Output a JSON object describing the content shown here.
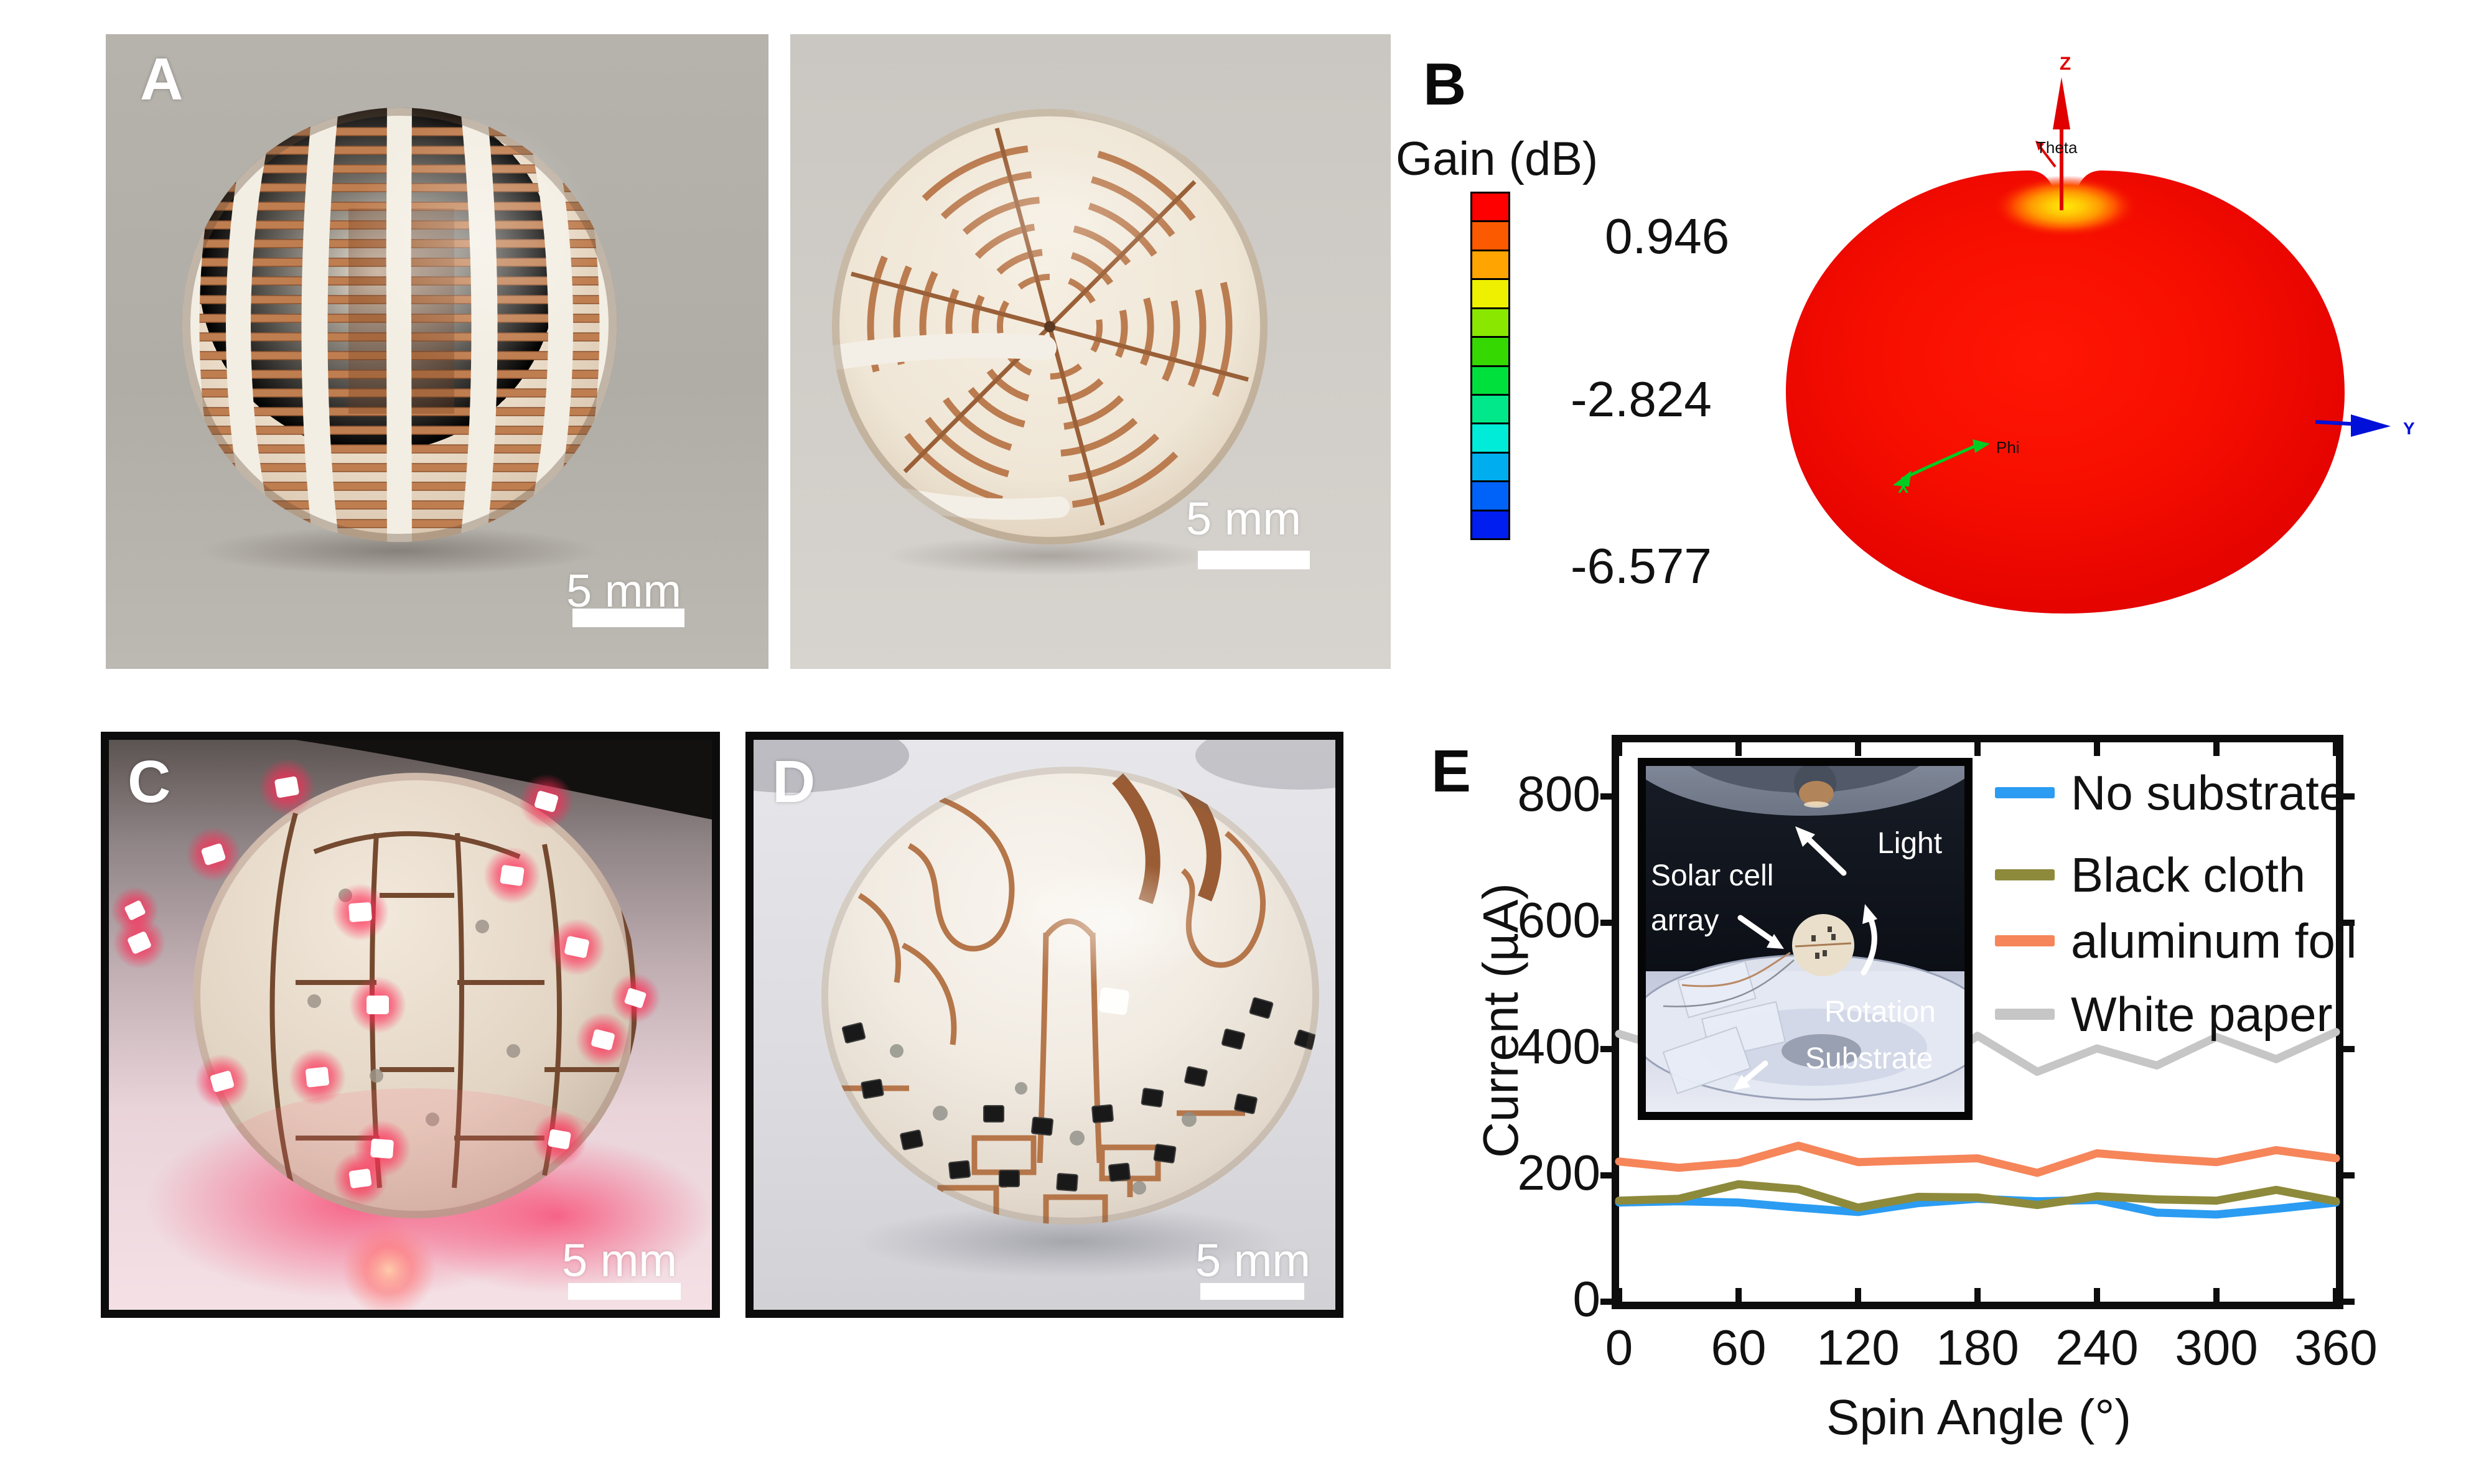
{
  "figure_labels": {
    "a": "A",
    "b": "B",
    "c": "C",
    "d": "D",
    "e": "E"
  },
  "panel_a": {
    "scale_bar_left": "5 mm",
    "scale_bar_right": "5 mm"
  },
  "panel_b": {
    "colorbar_title": "Gain (dB)",
    "colorbar_ticks": [
      "0.946",
      "-2.824",
      "-6.577"
    ],
    "colorbar_colors": [
      "#fe0000",
      "#fb5a00",
      "#ffa400",
      "#eef000",
      "#8ae800",
      "#35d800",
      "#00e03c",
      "#00e889",
      "#00ebd8",
      "#00aeef",
      "#0063f9",
      "#001ef0"
    ],
    "axis_labels": {
      "z": "Z",
      "theta": "Theta",
      "y": "Y",
      "x": "X",
      "phi": "Phi"
    }
  },
  "panel_c": {
    "scale_bar": "5 mm"
  },
  "panel_d": {
    "scale_bar": "5 mm"
  },
  "panel_e": {
    "ylabel": "Current  (µA)",
    "xlabel": "Spin Angle (°)",
    "inset_labels": {
      "light": "Light",
      "solar_cell_line1": "Solar cell",
      "solar_cell_line2": "array",
      "rotation": "Rotation",
      "substrate": "Substrate"
    }
  },
  "chart_data": {
    "type": "line",
    "title": "",
    "xlabel": "Spin Angle (°)",
    "ylabel": "Current (µA)",
    "x": [
      0,
      30,
      60,
      90,
      120,
      150,
      180,
      210,
      240,
      270,
      300,
      330,
      360
    ],
    "series": [
      {
        "name": "No substrate",
        "color": "#2b9cf2",
        "values": [
          157,
          159,
          157,
          149,
          142,
          156,
          163,
          159,
          161,
          141,
          138,
          147,
          157
        ]
      },
      {
        "name": "Black cloth",
        "color": "#8e8a3c",
        "values": [
          160,
          163,
          186,
          178,
          149,
          166,
          165,
          153,
          167,
          162,
          160,
          177,
          159
        ]
      },
      {
        "name": "aluminum foil",
        "color": "#f6855a",
        "values": [
          222,
          212,
          220,
          247,
          221,
          224,
          227,
          204,
          235,
          227,
          221,
          240,
          227
        ]
      },
      {
        "name": "White paper",
        "color": "#c6c6c6",
        "values": [
          424,
          395,
          412,
          389,
          368,
          355,
          421,
          364,
          401,
          374,
          419,
          384,
          427
        ]
      }
    ],
    "xticks": [
      0,
      60,
      120,
      180,
      240,
      300,
      360
    ],
    "yticks": [
      0,
      200,
      400,
      600,
      800
    ],
    "xlim": [
      0,
      360
    ],
    "ylim": [
      0,
      890
    ],
    "legend_position": "top-right-inside",
    "grid": false
  }
}
